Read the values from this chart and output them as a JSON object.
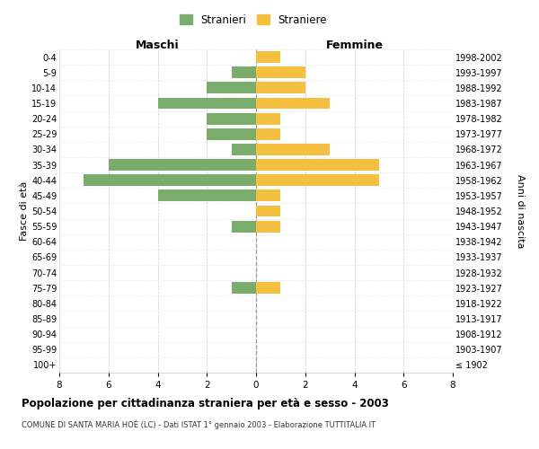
{
  "age_groups": [
    "100+",
    "95-99",
    "90-94",
    "85-89",
    "80-84",
    "75-79",
    "70-74",
    "65-69",
    "60-64",
    "55-59",
    "50-54",
    "45-49",
    "40-44",
    "35-39",
    "30-34",
    "25-29",
    "20-24",
    "15-19",
    "10-14",
    "5-9",
    "0-4"
  ],
  "birth_years": [
    "≤ 1902",
    "1903-1907",
    "1908-1912",
    "1913-1917",
    "1918-1922",
    "1923-1927",
    "1928-1932",
    "1933-1937",
    "1938-1942",
    "1943-1947",
    "1948-1952",
    "1953-1957",
    "1958-1962",
    "1963-1967",
    "1968-1972",
    "1973-1977",
    "1978-1982",
    "1983-1987",
    "1988-1992",
    "1993-1997",
    "1998-2002"
  ],
  "maschi": [
    0,
    0,
    0,
    0,
    0,
    1,
    0,
    0,
    0,
    1,
    0,
    4,
    7,
    6,
    1,
    2,
    2,
    4,
    2,
    1,
    0
  ],
  "femmine": [
    0,
    0,
    0,
    0,
    0,
    1,
    0,
    0,
    0,
    1,
    1,
    1,
    5,
    5,
    3,
    1,
    1,
    3,
    2,
    2,
    1
  ],
  "maschi_color": "#7aad6b",
  "femmine_color": "#f5c040",
  "legend_maschi": "Stranieri",
  "legend_femmine": "Straniere",
  "maschi_label": "Maschi",
  "femmine_label": "Femmine",
  "ylabel_left": "Fasce di età",
  "ylabel_right": "Anni di nascita",
  "xlim": 8,
  "title": "Popolazione per cittadinanza straniera per età e sesso - 2003",
  "subtitle": "COMUNE DI SANTA MARIA HOÈ (LC) - Dati ISTAT 1° gennaio 2003 - Elaborazione TUTTITALIA.IT",
  "grid_color": "#cccccc",
  "bar_height": 0.75,
  "background_color": "#ffffff"
}
